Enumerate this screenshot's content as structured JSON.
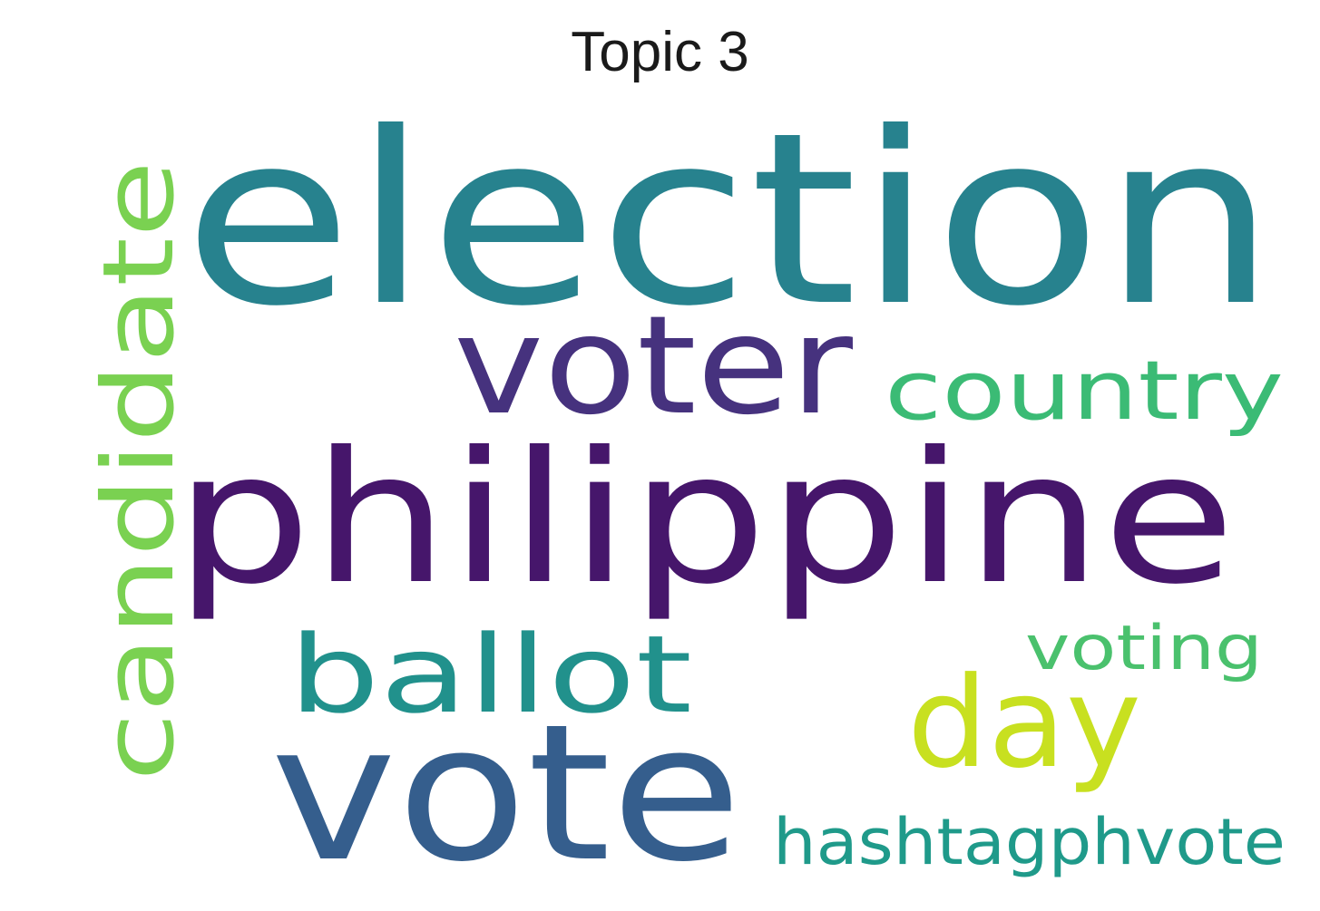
{
  "title": "Topic 3",
  "words": [
    {
      "text": "election",
      "color": "#27828e"
    },
    {
      "text": "philippine",
      "color": "#46166b"
    },
    {
      "text": "vote",
      "color": "#355e8d"
    },
    {
      "text": "voter",
      "color": "#46327e"
    },
    {
      "text": "candidate",
      "color": "#7ad151"
    },
    {
      "text": "ballot",
      "color": "#21918c"
    },
    {
      "text": "day",
      "color": "#c8e020"
    },
    {
      "text": "country",
      "color": "#3bbb75"
    },
    {
      "text": "voting",
      "color": "#4ac16d"
    },
    {
      "text": "hashtagphvote",
      "color": "#1f9a8a"
    }
  ]
}
